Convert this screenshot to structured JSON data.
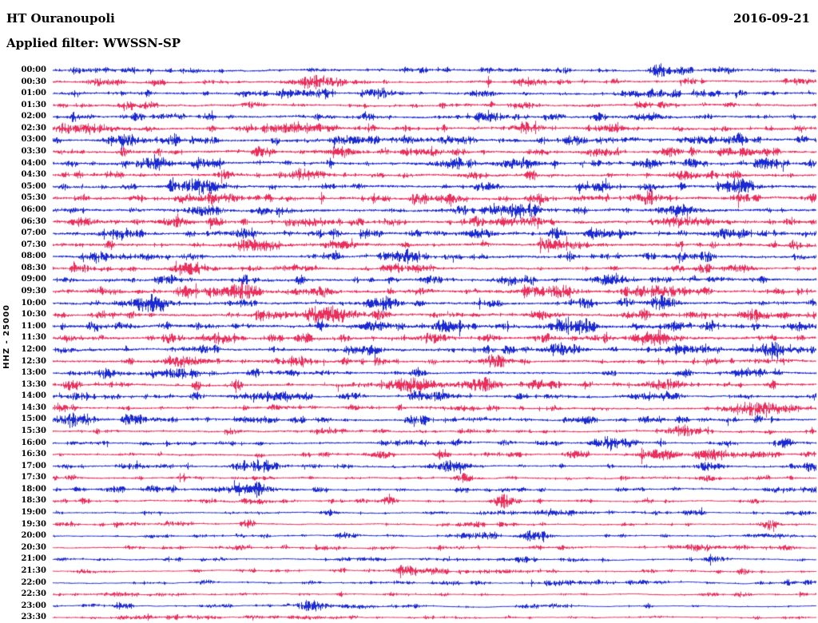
{
  "header": {
    "station": "HT Ouranoupoli",
    "date": "2016-09-21",
    "filter_label": "Applied filter: WWSSN-SP"
  },
  "y_axis_label": "HHZ - 25000",
  "colors": {
    "trace_blue": "#0011cc",
    "trace_red": "#e8174b",
    "text": "#000000",
    "background": "#ffffff"
  },
  "chart_data": {
    "type": "line",
    "subtype": "helicorder-seismogram",
    "title": "HT Ouranoupoli",
    "date": "2016-09-21",
    "filter": "WWSSN-SP",
    "channel_scale_label": "HHZ - 25000",
    "row_duration_minutes": 30,
    "legend_position": "none",
    "grid": false,
    "note": "Continuous 24-hour vertical-component seismic waveform, one 30-minute trace per row, alternating blue/red. Activity is relative noise amplitude (0-1); events are bursts given as [position-fraction, amplitude-px, width-px].",
    "rows": [
      {
        "label": "00:00",
        "color": "blue",
        "activity": 0.45,
        "events": [
          [
            0.88,
            5,
            16
          ]
        ]
      },
      {
        "label": "00:30",
        "color": "red",
        "activity": 0.45,
        "events": [
          [
            0.345,
            7,
            28
          ]
        ]
      },
      {
        "label": "01:00",
        "color": "blue",
        "activity": 0.5,
        "events": [
          [
            0.43,
            6,
            18
          ],
          [
            0.57,
            4,
            12
          ]
        ]
      },
      {
        "label": "01:30",
        "color": "red",
        "activity": 0.5,
        "events": [
          [
            0.1,
            4,
            12
          ],
          [
            0.62,
            4,
            12
          ]
        ]
      },
      {
        "label": "02:00",
        "color": "blue",
        "activity": 0.55,
        "events": [
          [
            0.78,
            6,
            22
          ]
        ]
      },
      {
        "label": "02:30",
        "color": "red",
        "activity": 0.6,
        "events": [
          [
            0.055,
            7,
            22
          ],
          [
            0.3,
            5,
            14
          ],
          [
            0.62,
            5,
            16
          ]
        ]
      },
      {
        "label": "03:00",
        "color": "blue",
        "activity": 0.6,
        "events": [
          [
            0.1,
            8,
            20
          ],
          [
            0.47,
            5,
            14
          ]
        ]
      },
      {
        "label": "03:30",
        "color": "red",
        "activity": 0.6,
        "events": [
          [
            0.38,
            6,
            18
          ],
          [
            0.5,
            5,
            14
          ],
          [
            0.71,
            5,
            14
          ]
        ]
      },
      {
        "label": "04:00",
        "color": "blue",
        "activity": 0.65,
        "events": [
          [
            0.13,
            8,
            22
          ],
          [
            0.52,
            7,
            18
          ],
          [
            0.61,
            8,
            24
          ]
        ]
      },
      {
        "label": "04:30",
        "color": "red",
        "activity": 0.65,
        "events": [
          [
            0.33,
            7,
            20
          ],
          [
            0.55,
            5,
            14
          ],
          [
            0.83,
            6,
            18
          ]
        ]
      },
      {
        "label": "05:00",
        "color": "blue",
        "activity": 0.7,
        "events": [
          [
            0.19,
            9,
            28
          ],
          [
            0.57,
            6,
            16
          ],
          [
            0.9,
            7,
            20
          ]
        ]
      },
      {
        "label": "05:30",
        "color": "red",
        "activity": 0.7,
        "events": [
          [
            0.21,
            7,
            18
          ],
          [
            0.52,
            6,
            16
          ],
          [
            0.78,
            5,
            14
          ]
        ]
      },
      {
        "label": "06:00",
        "color": "blue",
        "activity": 0.7,
        "events": [
          [
            0.61,
            8,
            22
          ],
          [
            0.82,
            8,
            24
          ]
        ]
      },
      {
        "label": "06:30",
        "color": "red",
        "activity": 0.7,
        "events": [
          [
            0.04,
            7,
            16
          ],
          [
            0.16,
            7,
            18
          ],
          [
            0.63,
            7,
            18
          ],
          [
            0.82,
            8,
            22
          ]
        ]
      },
      {
        "label": "07:00",
        "color": "blue",
        "activity": 0.7,
        "events": [
          [
            0.09,
            8,
            20
          ],
          [
            0.25,
            7,
            18
          ],
          [
            0.56,
            7,
            18
          ],
          [
            0.88,
            7,
            18
          ]
        ]
      },
      {
        "label": "07:30",
        "color": "red",
        "activity": 0.68,
        "events": [
          [
            0.26,
            8,
            22
          ],
          [
            0.38,
            7,
            18
          ],
          [
            0.68,
            6,
            16
          ]
        ]
      },
      {
        "label": "08:00",
        "color": "blue",
        "activity": 0.58,
        "events": [
          [
            0.18,
            5,
            14
          ],
          [
            0.47,
            5,
            14
          ]
        ]
      },
      {
        "label": "08:30",
        "color": "red",
        "activity": 0.58,
        "events": [
          [
            0.175,
            8,
            18
          ],
          [
            0.9,
            6,
            16
          ]
        ]
      },
      {
        "label": "09:00",
        "color": "blue",
        "activity": 0.62,
        "events": [
          [
            0.6,
            7,
            20
          ],
          [
            0.73,
            8,
            22
          ]
        ]
      },
      {
        "label": "09:30",
        "color": "red",
        "activity": 0.68,
        "events": [
          [
            0.25,
            8,
            24
          ],
          [
            0.35,
            7,
            18
          ],
          [
            0.63,
            8,
            22
          ],
          [
            0.79,
            10,
            32
          ]
        ]
      },
      {
        "label": "10:00",
        "color": "blue",
        "activity": 0.72,
        "events": [
          [
            0.12,
            9,
            26
          ],
          [
            0.43,
            8,
            20
          ],
          [
            0.8,
            7,
            18
          ]
        ]
      },
      {
        "label": "10:30",
        "color": "red",
        "activity": 0.68,
        "events": [
          [
            0.36,
            8,
            22
          ],
          [
            0.64,
            6,
            16
          ],
          [
            0.92,
            7,
            18
          ]
        ]
      },
      {
        "label": "11:00",
        "color": "blue",
        "activity": 0.72,
        "events": [
          [
            0.42,
            7,
            20
          ],
          [
            0.68,
            9,
            26
          ]
        ]
      },
      {
        "label": "11:30",
        "color": "red",
        "activity": 0.72,
        "events": [
          [
            0.22,
            8,
            22
          ],
          [
            0.5,
            7,
            18
          ],
          [
            0.79,
            10,
            28
          ]
        ]
      },
      {
        "label": "12:00",
        "color": "blue",
        "activity": 0.68,
        "events": [
          [
            0.67,
            8,
            22
          ],
          [
            0.94,
            8,
            22
          ]
        ]
      },
      {
        "label": "12:30",
        "color": "red",
        "activity": 0.62,
        "events": [
          [
            0.17,
            8,
            24
          ],
          [
            0.58,
            7,
            18
          ]
        ]
      },
      {
        "label": "13:00",
        "color": "blue",
        "activity": 0.58,
        "events": [
          [
            0.07,
            7,
            16
          ],
          [
            0.165,
            9,
            24
          ]
        ]
      },
      {
        "label": "13:30",
        "color": "red",
        "activity": 0.52,
        "events": [
          [
            0.47,
            11,
            32
          ],
          [
            0.56,
            9,
            24
          ],
          [
            0.8,
            8,
            22
          ]
        ]
      },
      {
        "label": "14:00",
        "color": "blue",
        "activity": 0.48,
        "events": [
          [
            0.28,
            7,
            36
          ],
          [
            0.5,
            7,
            20
          ]
        ]
      },
      {
        "label": "14:30",
        "color": "red",
        "activity": 0.46,
        "events": [
          [
            0.93,
            10,
            28
          ]
        ]
      },
      {
        "label": "15:00",
        "color": "blue",
        "activity": 0.46,
        "events": [
          [
            0.03,
            9,
            22
          ]
        ]
      },
      {
        "label": "15:30",
        "color": "red",
        "activity": 0.42,
        "events": [
          [
            0.825,
            8,
            20
          ]
        ]
      },
      {
        "label": "16:00",
        "color": "blue",
        "activity": 0.4,
        "events": [
          [
            0.73,
            8,
            22
          ]
        ]
      },
      {
        "label": "16:30",
        "color": "red",
        "activity": 0.4,
        "events": [
          [
            0.8,
            8,
            20
          ],
          [
            0.86,
            6,
            14
          ]
        ]
      },
      {
        "label": "17:00",
        "color": "blue",
        "activity": 0.4,
        "events": [
          [
            0.27,
            9,
            26
          ],
          [
            0.52,
            8,
            24
          ],
          [
            0.86,
            7,
            16
          ]
        ]
      },
      {
        "label": "17:30",
        "color": "red",
        "activity": 0.35,
        "events": [
          [
            0.54,
            5,
            12
          ]
        ]
      },
      {
        "label": "18:00",
        "color": "blue",
        "activity": 0.35,
        "events": [
          [
            0.25,
            6,
            40
          ],
          [
            0.27,
            10,
            5
          ]
        ]
      },
      {
        "label": "18:30",
        "color": "red",
        "activity": 0.33,
        "events": [
          [
            0.59,
            9,
            12
          ]
        ]
      },
      {
        "label": "19:00",
        "color": "blue",
        "activity": 0.3,
        "events": [
          [
            0.65,
            5,
            26
          ]
        ]
      },
      {
        "label": "19:30",
        "color": "red",
        "activity": 0.3,
        "events": [
          [
            0.94,
            11,
            10
          ]
        ]
      },
      {
        "label": "20:00",
        "color": "blue",
        "activity": 0.3,
        "events": [
          [
            0.63,
            4,
            18
          ]
        ]
      },
      {
        "label": "20:30",
        "color": "red",
        "activity": 0.28,
        "events": []
      },
      {
        "label": "21:00",
        "color": "blue",
        "activity": 0.28,
        "events": [
          [
            0.87,
            4,
            14
          ]
        ]
      },
      {
        "label": "21:30",
        "color": "red",
        "activity": 0.25,
        "events": [
          [
            0.465,
            8,
            16
          ]
        ]
      },
      {
        "label": "22:00",
        "color": "blue",
        "activity": 0.22,
        "events": []
      },
      {
        "label": "22:30",
        "color": "red",
        "activity": 0.22,
        "events": []
      },
      {
        "label": "23:00",
        "color": "blue",
        "activity": 0.2,
        "events": [
          [
            0.34,
            8,
            18
          ]
        ]
      },
      {
        "label": "23:30",
        "color": "red",
        "activity": 0.2,
        "events": []
      }
    ]
  }
}
